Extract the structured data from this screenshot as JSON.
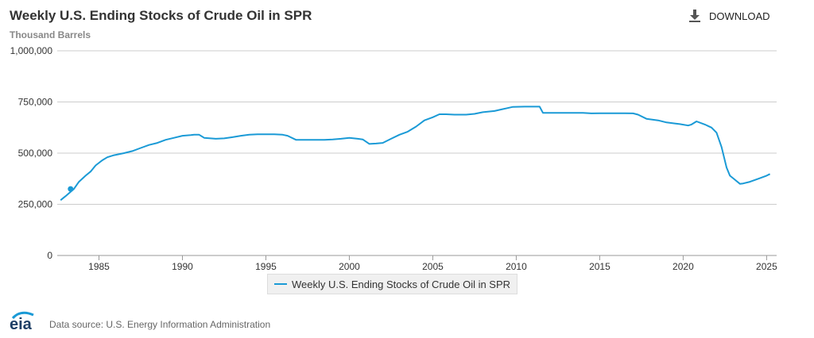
{
  "header": {
    "title": "Weekly U.S. Ending Stocks of Crude Oil in SPR",
    "units": "Thousand Barrels",
    "download_label": "DOWNLOAD"
  },
  "legend": {
    "label": "Weekly U.S. Ending Stocks of Crude Oil in SPR"
  },
  "footer": {
    "logo_text": "eia",
    "source": "Data source: U.S. Energy Information Administration"
  },
  "colors": {
    "series": "#1a9ad6",
    "grid": "#cccccc",
    "axis_text": "#333333",
    "logo": "#1f3f66"
  },
  "icons": {
    "download": "download-icon",
    "logo": "eia-logo-icon"
  },
  "chart_data": {
    "type": "line",
    "title": "Weekly U.S. Ending Stocks of Crude Oil in SPR",
    "ylabel": "Thousand Barrels",
    "xlim": [
      1982.5,
      2025.6
    ],
    "ylim": [
      0,
      1000000
    ],
    "yticks": [
      0,
      250000,
      500000,
      750000,
      1000000
    ],
    "ytick_labels": [
      "0",
      "250,000",
      "500,000",
      "750,000",
      "1,000,000"
    ],
    "xticks": [
      1985,
      1990,
      1995,
      2000,
      2005,
      2010,
      2015,
      2020,
      2025
    ],
    "xtick_labels": [
      "1985",
      "1990",
      "1995",
      "2000",
      "2005",
      "2010",
      "2015",
      "2020",
      "2025"
    ],
    "grid": true,
    "legend_position": "bottom-center",
    "series": [
      {
        "name": "Weekly U.S. Ending Stocks of Crude Oil in SPR",
        "marker": {
          "x": 1983.3,
          "y": 325000
        },
        "x": [
          1982.7,
          1983.0,
          1983.5,
          1983.8,
          1984.2,
          1984.5,
          1984.8,
          1985.2,
          1985.5,
          1985.9,
          1986.5,
          1987.0,
          1987.5,
          1988.0,
          1988.5,
          1989.0,
          1989.5,
          1990.0,
          1990.5,
          1990.7,
          1991.0,
          1991.3,
          1992.0,
          1992.5,
          1993.0,
          1993.5,
          1994.0,
          1994.5,
          1995.0,
          1995.5,
          1996.0,
          1996.3,
          1996.8,
          1997.5,
          1998.0,
          1998.5,
          1999.0,
          1999.5,
          2000.0,
          2000.5,
          2000.8,
          2001.2,
          2001.6,
          2002.0,
          2002.5,
          2003.0,
          2003.5,
          2004.0,
          2004.5,
          2005.0,
          2005.4,
          2005.8,
          2006.3,
          2007.0,
          2007.5,
          2008.0,
          2008.7,
          2009.2,
          2009.8,
          2010.5,
          2011.0,
          2011.4,
          2011.6,
          2012.0,
          2013.0,
          2014.0,
          2014.5,
          2015.0,
          2015.5,
          2016.0,
          2016.5,
          2017.0,
          2017.3,
          2017.8,
          2018.5,
          2019.0,
          2019.5,
          2019.8,
          2020.3,
          2020.5,
          2020.8,
          2021.3,
          2021.7,
          2022.0,
          2022.3,
          2022.6,
          2022.8,
          2023.1,
          2023.4,
          2023.6,
          2024.0,
          2024.5,
          2025.0,
          2025.2
        ],
        "y": [
          270000,
          290000,
          325000,
          360000,
          390000,
          410000,
          440000,
          465000,
          480000,
          490000,
          500000,
          510000,
          525000,
          540000,
          550000,
          565000,
          575000,
          585000,
          588000,
          590000,
          590000,
          575000,
          570000,
          572000,
          578000,
          585000,
          590000,
          592000,
          592000,
          592000,
          590000,
          585000,
          565000,
          565000,
          565000,
          565000,
          567000,
          570000,
          575000,
          570000,
          567000,
          545000,
          547000,
          550000,
          570000,
          590000,
          605000,
          630000,
          660000,
          675000,
          690000,
          690000,
          688000,
          688000,
          692000,
          700000,
          706000,
          715000,
          726000,
          727000,
          727000,
          727000,
          697000,
          697000,
          697000,
          697000,
          694000,
          695000,
          695000,
          695000,
          695000,
          694000,
          688000,
          668000,
          660000,
          650000,
          645000,
          642000,
          635000,
          640000,
          655000,
          640000,
          625000,
          600000,
          530000,
          430000,
          390000,
          370000,
          350000,
          352000,
          360000,
          375000,
          390000,
          398000
        ]
      }
    ]
  }
}
